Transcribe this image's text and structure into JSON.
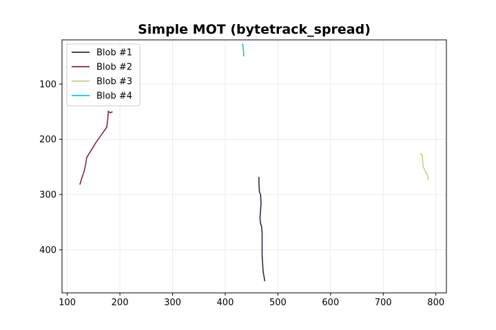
{
  "chart_data": {
    "type": "line",
    "title": "Simple MOT (bytetrack_spread)",
    "xlabel": "",
    "ylabel": "",
    "xlim": [
      90,
      820
    ],
    "ylim": [
      478,
      20
    ],
    "y_inverted": true,
    "grid": true,
    "legend_position": "top-left",
    "xticks": [
      100,
      200,
      300,
      400,
      500,
      600,
      700,
      800
    ],
    "yticks": [
      100,
      200,
      300,
      400
    ],
    "series": [
      {
        "name": "Blob #1",
        "color": "#2b2a4c",
        "points": [
          [
            464,
            268
          ],
          [
            464,
            280
          ],
          [
            465,
            295
          ],
          [
            467,
            300
          ],
          [
            468,
            315
          ],
          [
            467,
            330
          ],
          [
            466,
            342
          ],
          [
            467,
            352
          ],
          [
            469,
            358
          ],
          [
            470,
            370
          ],
          [
            470,
            390
          ],
          [
            470,
            410
          ],
          [
            471,
            425
          ],
          [
            472,
            440
          ],
          [
            474,
            450
          ],
          [
            475,
            457
          ]
        ]
      },
      {
        "name": "Blob #2",
        "color": "#7d2a3f",
        "points": [
          [
            186,
            150
          ],
          [
            181,
            152
          ],
          [
            178,
            149
          ],
          [
            177,
            162
          ],
          [
            175,
            178
          ],
          [
            155,
            205
          ],
          [
            137,
            233
          ],
          [
            135,
            245
          ],
          [
            132,
            258
          ],
          [
            127,
            272
          ],
          [
            124,
            282
          ]
        ]
      },
      {
        "name": "Blob #3",
        "color": "#bdd77b",
        "points": [
          [
            770,
            226
          ],
          [
            774,
            228
          ],
          [
            775,
            240
          ],
          [
            776,
            250
          ],
          [
            780,
            258
          ],
          [
            784,
            265
          ],
          [
            786,
            274
          ]
        ]
      },
      {
        "name": "Blob #4",
        "color": "#17c7c2",
        "points": [
          [
            432,
            27
          ],
          [
            434,
            30
          ],
          [
            434,
            35
          ],
          [
            435,
            42
          ],
          [
            435,
            50
          ]
        ]
      }
    ]
  }
}
